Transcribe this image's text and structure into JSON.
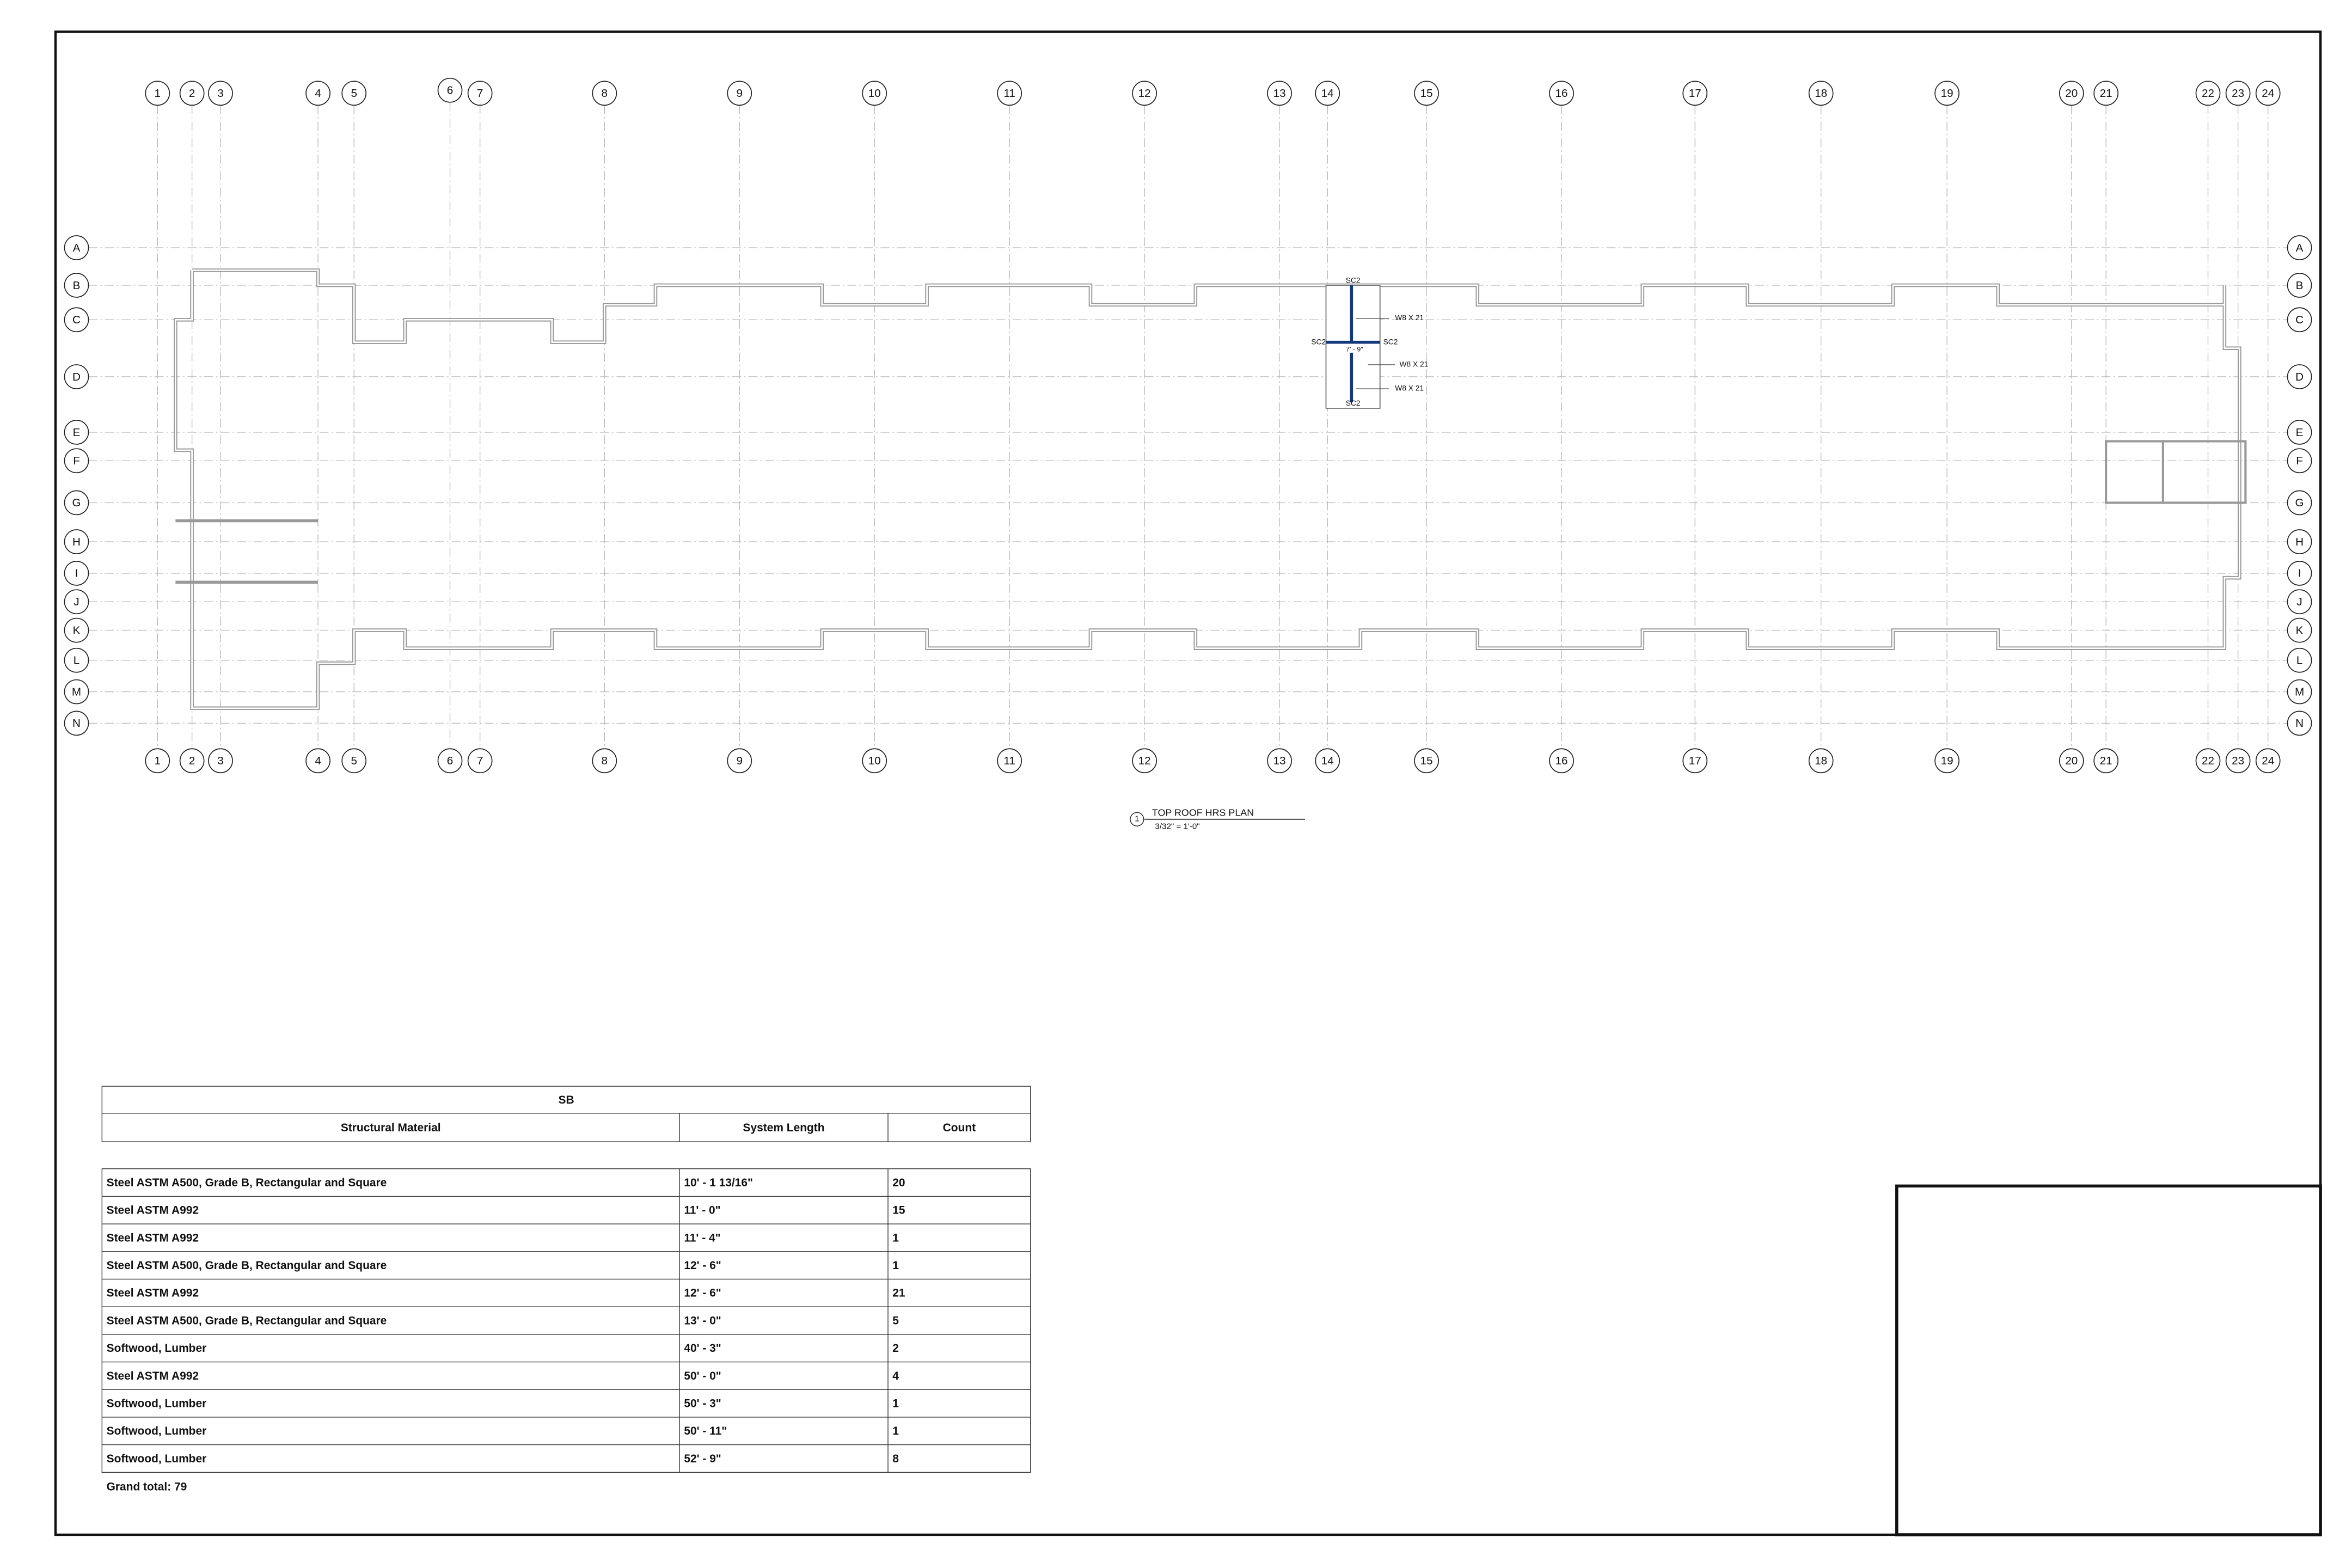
{
  "grid": {
    "columns": [
      "1",
      "2",
      "3",
      "4",
      "5",
      "6",
      "7",
      "8",
      "9",
      "10",
      "11",
      "12",
      "13",
      "14",
      "15",
      "16",
      "17",
      "18",
      "19",
      "20",
      "21",
      "22",
      "23",
      "24"
    ],
    "rows": [
      "A",
      "B",
      "C",
      "D",
      "E",
      "F",
      "G",
      "H",
      "I",
      "J",
      "K",
      "L",
      "M",
      "N"
    ]
  },
  "annotations": {
    "connection_labels": [
      "SC2",
      "SC2",
      "SC2",
      "SC2"
    ],
    "beam_labels": [
      "W8 X 21",
      "W8 X 21",
      "W8 X 21"
    ],
    "dimension": "7' - 9\""
  },
  "view": {
    "number": "1",
    "title": "TOP ROOF HRS PLAN",
    "scale": "3/32\" = 1'-0\""
  },
  "schedule": {
    "title": "SB",
    "headers": [
      "Structural Material",
      "System Length",
      "Count"
    ],
    "rows": [
      [
        "Steel ASTM A500, Grade B, Rectangular and Square",
        "10' - 1 13/16\"",
        20
      ],
      [
        "Steel ASTM A992",
        "11' - 0\"",
        15
      ],
      [
        "Steel ASTM A992",
        "11' - 4\"",
        1
      ],
      [
        "Steel ASTM A500, Grade B, Rectangular and Square",
        "12' - 6\"",
        1
      ],
      [
        "Steel ASTM A992",
        "12' - 6\"",
        21
      ],
      [
        "Steel ASTM A500, Grade B, Rectangular and Square",
        "13' - 0\"",
        5
      ],
      [
        "Softwood, Lumber",
        "40' - 3\"",
        2
      ],
      [
        "Steel ASTM A992",
        "50' - 0\"",
        4
      ],
      [
        "Softwood, Lumber",
        "50' - 3\"",
        1
      ],
      [
        "Softwood, Lumber",
        "50' - 11\"",
        1
      ],
      [
        "Softwood, Lumber",
        "52' - 9\"",
        8
      ]
    ],
    "grand_total": "Grand total: 79"
  }
}
